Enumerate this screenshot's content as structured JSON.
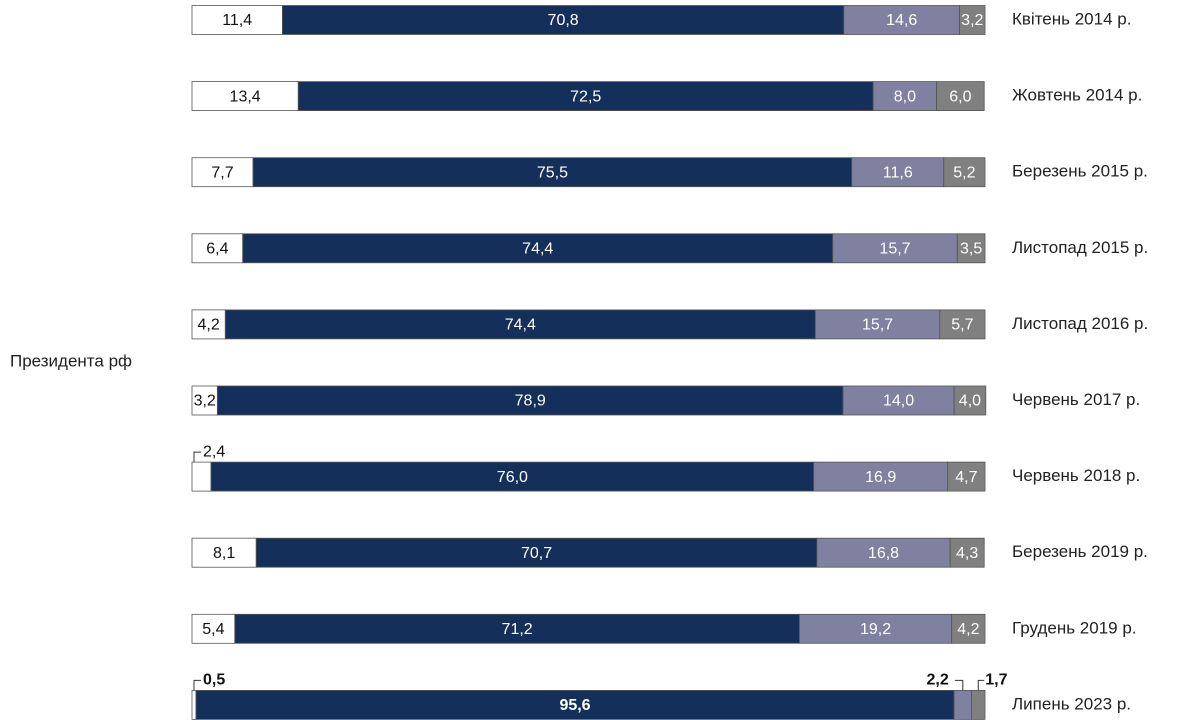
{
  "chart_data": {
    "type": "stacked_bar_horizontal",
    "ylabel": "Президента рф",
    "categories": [
      "Квітень 2014 р.",
      "Жовтень 2014 р.",
      "Березень 2015 р.",
      "Листопад 2015 р.",
      "Листопад 2016 р.",
      "Червень 2017 р.",
      "Червень 2018 р.",
      "Березень 2019 р.",
      "Грудень 2019 р.",
      "Липень 2023 р."
    ],
    "xlim": [
      0,
      100
    ],
    "series": [
      {
        "color": "#ffffff",
        "values": [
          11.4,
          13.4,
          7.7,
          6.4,
          4.2,
          3.2,
          2.4,
          8.1,
          5.4,
          0.5
        ],
        "value_labels": [
          "11,4",
          "13,4",
          "7,7",
          "6,4",
          "4,2",
          "3,2",
          "2,4",
          "8,1",
          "5,4",
          "0,5"
        ]
      },
      {
        "color": "#14305a",
        "values": [
          70.8,
          72.5,
          75.5,
          74.4,
          74.4,
          78.9,
          76.0,
          70.7,
          71.2,
          95.6
        ],
        "value_labels": [
          "70,8",
          "72,5",
          "75,5",
          "74,4",
          "74,4",
          "78,9",
          "76,0",
          "70,7",
          "71,2",
          "95,6"
        ]
      },
      {
        "color": "#8080a0",
        "values": [
          14.6,
          8.0,
          11.6,
          15.7,
          15.7,
          14.0,
          16.9,
          16.8,
          19.2,
          2.2
        ],
        "value_labels": [
          "14,6",
          "8,0",
          "11,6",
          "15,7",
          "15,7",
          "14,0",
          "16,9",
          "16,8",
          "19,2",
          "2,2"
        ]
      },
      {
        "color": "#808080",
        "values": [
          3.2,
          6.0,
          5.2,
          3.5,
          5.7,
          4.0,
          4.7,
          4.3,
          4.2,
          1.7
        ],
        "value_labels": [
          "3,2",
          "6,0",
          "5,2",
          "3,5",
          "5,7",
          "4,0",
          "4,7",
          "4,3",
          "4,2",
          "1,7"
        ]
      }
    ]
  }
}
